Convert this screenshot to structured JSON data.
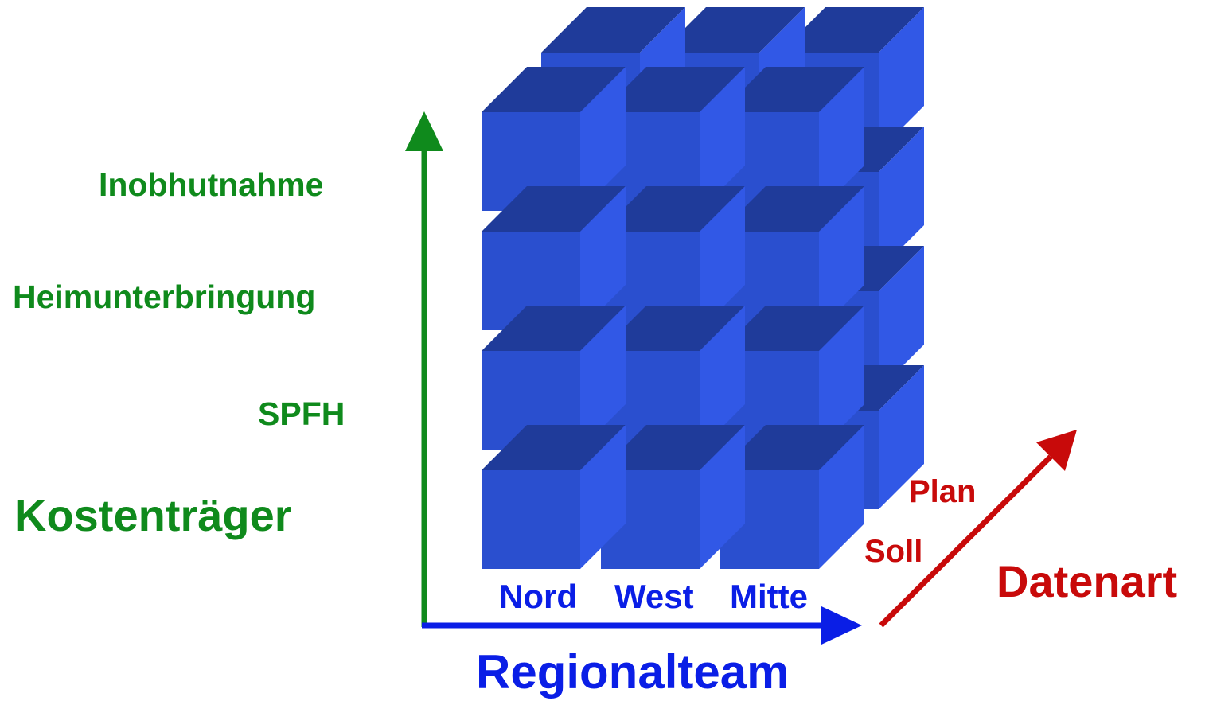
{
  "diagram": {
    "colors": {
      "cube_front": "#2a4fcf",
      "cube_top": "#1f3b9a",
      "cube_side": "#3158e6",
      "axis_vertical": "#0f8a1c",
      "axis_horizontal": "#0a1ee6",
      "axis_depth": "#c80a0a"
    },
    "vertical_axis": {
      "title": "Kostenträger",
      "items": [
        "Inobhutnahme",
        "Heimunterbringung",
        "SPFH"
      ]
    },
    "horizontal_axis": {
      "title": "Regionalteam",
      "items": [
        "Nord",
        "West",
        "Mitte"
      ]
    },
    "depth_axis": {
      "title": "Datenart",
      "items": [
        "Soll",
        "Plan"
      ]
    }
  }
}
